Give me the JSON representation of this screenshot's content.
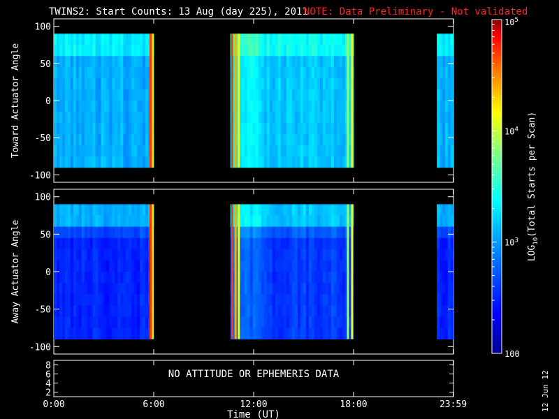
{
  "header": {
    "title": "TWINS2: Start Counts: 13 Aug (day 225), 2011",
    "note": "NOTE: Data Preliminary - Not validated",
    "note_color": "#ff2020"
  },
  "side_date": "12 Jun 12",
  "no_data_text": "NO ATTITUDE OR EPHEMERIS DATA",
  "chart_data": [
    {
      "type": "heatmap",
      "panel": "toward",
      "ylabel": "Toward Actuator Angle",
      "ylim": [
        -110,
        110
      ],
      "yticks": [
        -100,
        -50,
        0,
        50,
        100
      ],
      "xlim_hours": [
        0,
        24
      ],
      "data_blocks_hours": [
        [
          0,
          6.0
        ],
        [
          10.6,
          18.0
        ],
        [
          23.0,
          23.98
        ]
      ],
      "data_angle_range": [
        -90,
        90
      ]
    },
    {
      "type": "heatmap",
      "panel": "away",
      "ylabel": "Away Actuator Angle",
      "ylim": [
        -110,
        110
      ],
      "yticks": [
        -100,
        -50,
        0,
        50,
        100
      ],
      "xlim_hours": [
        0,
        24
      ],
      "data_blocks_hours": [
        [
          0,
          6.0
        ],
        [
          10.6,
          18.0
        ],
        [
          23.0,
          23.98
        ]
      ],
      "data_angle_range": [
        -90,
        90
      ]
    },
    {
      "type": "line",
      "panel": "attitude",
      "ylim": [
        1,
        9
      ],
      "yticks": [
        "2",
        "4",
        "6",
        "8"
      ],
      "xlabel": "Time (UT)",
      "xticks": [
        "0:00",
        "6:00",
        "12:00",
        "18:00",
        "23:59"
      ],
      "xtick_hours": [
        0,
        6,
        12,
        18,
        23.98
      ]
    },
    {
      "type": "colorbar",
      "label": "LOG10(Total Starts per Scan)",
      "label_parts": {
        "pre": "LOG",
        "sub": "10",
        "post": "(Total Starts per Scan)"
      },
      "scale": "log",
      "range": [
        100,
        100000
      ],
      "ticks": [
        {
          "value": 100,
          "base": "100",
          "exp": ""
        },
        {
          "value": 1000,
          "base": "10",
          "exp": "3"
        },
        {
          "value": 10000,
          "base": "10",
          "exp": "4"
        },
        {
          "value": 100000,
          "base": "10",
          "exp": "5"
        }
      ],
      "colors": [
        "#00008f",
        "#0000ff",
        "#0080ff",
        "#00ffff",
        "#80ff80",
        "#ffff00",
        "#ff8000",
        "#ff0000",
        "#800000"
      ]
    }
  ]
}
